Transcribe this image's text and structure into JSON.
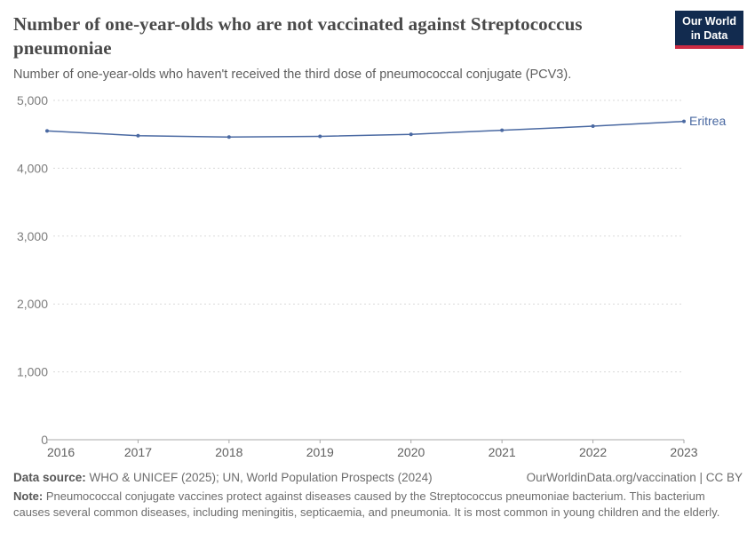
{
  "header": {
    "title": "Number of one-year-olds who are not vaccinated against Streptococcus pneumoniae",
    "subtitle": "Number of one-year-olds who haven't received the third dose of pneumococcal conjugate (PCV3).",
    "logo": {
      "line1": "Our World",
      "line2": "in Data"
    }
  },
  "chart_data": {
    "type": "line",
    "title": "Number of one-year-olds who are not vaccinated against Streptococcus pneumoniae",
    "x": [
      2016,
      2017,
      2018,
      2019,
      2020,
      2021,
      2022,
      2023
    ],
    "series": [
      {
        "name": "Eritrea",
        "values": [
          4550,
          4480,
          4460,
          4470,
          4500,
          4560,
          4620,
          4690
        ]
      }
    ],
    "ylim": [
      0,
      5000
    ],
    "yticks": [
      0,
      1000,
      2000,
      3000,
      4000,
      5000
    ],
    "xlabel": "",
    "ylabel": "",
    "grid": true,
    "legend": "end-of-line-label"
  },
  "footer": {
    "datasource_label": "Data source:",
    "datasource": " WHO & UNICEF (2025); UN, World Population Prospects (2024)",
    "link": "OurWorldinData.org/vaccination | CC BY",
    "note_label": "Note:",
    "note": " Pneumococcal conjugate vaccines protect against diseases caused by the Streptococcus pneumoniae bacterium. This bacterium causes several common diseases, including meningitis, septicaemia, and pneumonia. It is most common in young children and the elderly."
  },
  "colors": {
    "series_blue": "#4a69a2",
    "logo_navy": "#122b4f",
    "logo_red": "#cc2b43",
    "gridline": "#dadada",
    "axis": "#a8a8a8",
    "ytick_text": "#7d7d7d",
    "xtick_text": "#606060",
    "title_text": "#494949"
  }
}
